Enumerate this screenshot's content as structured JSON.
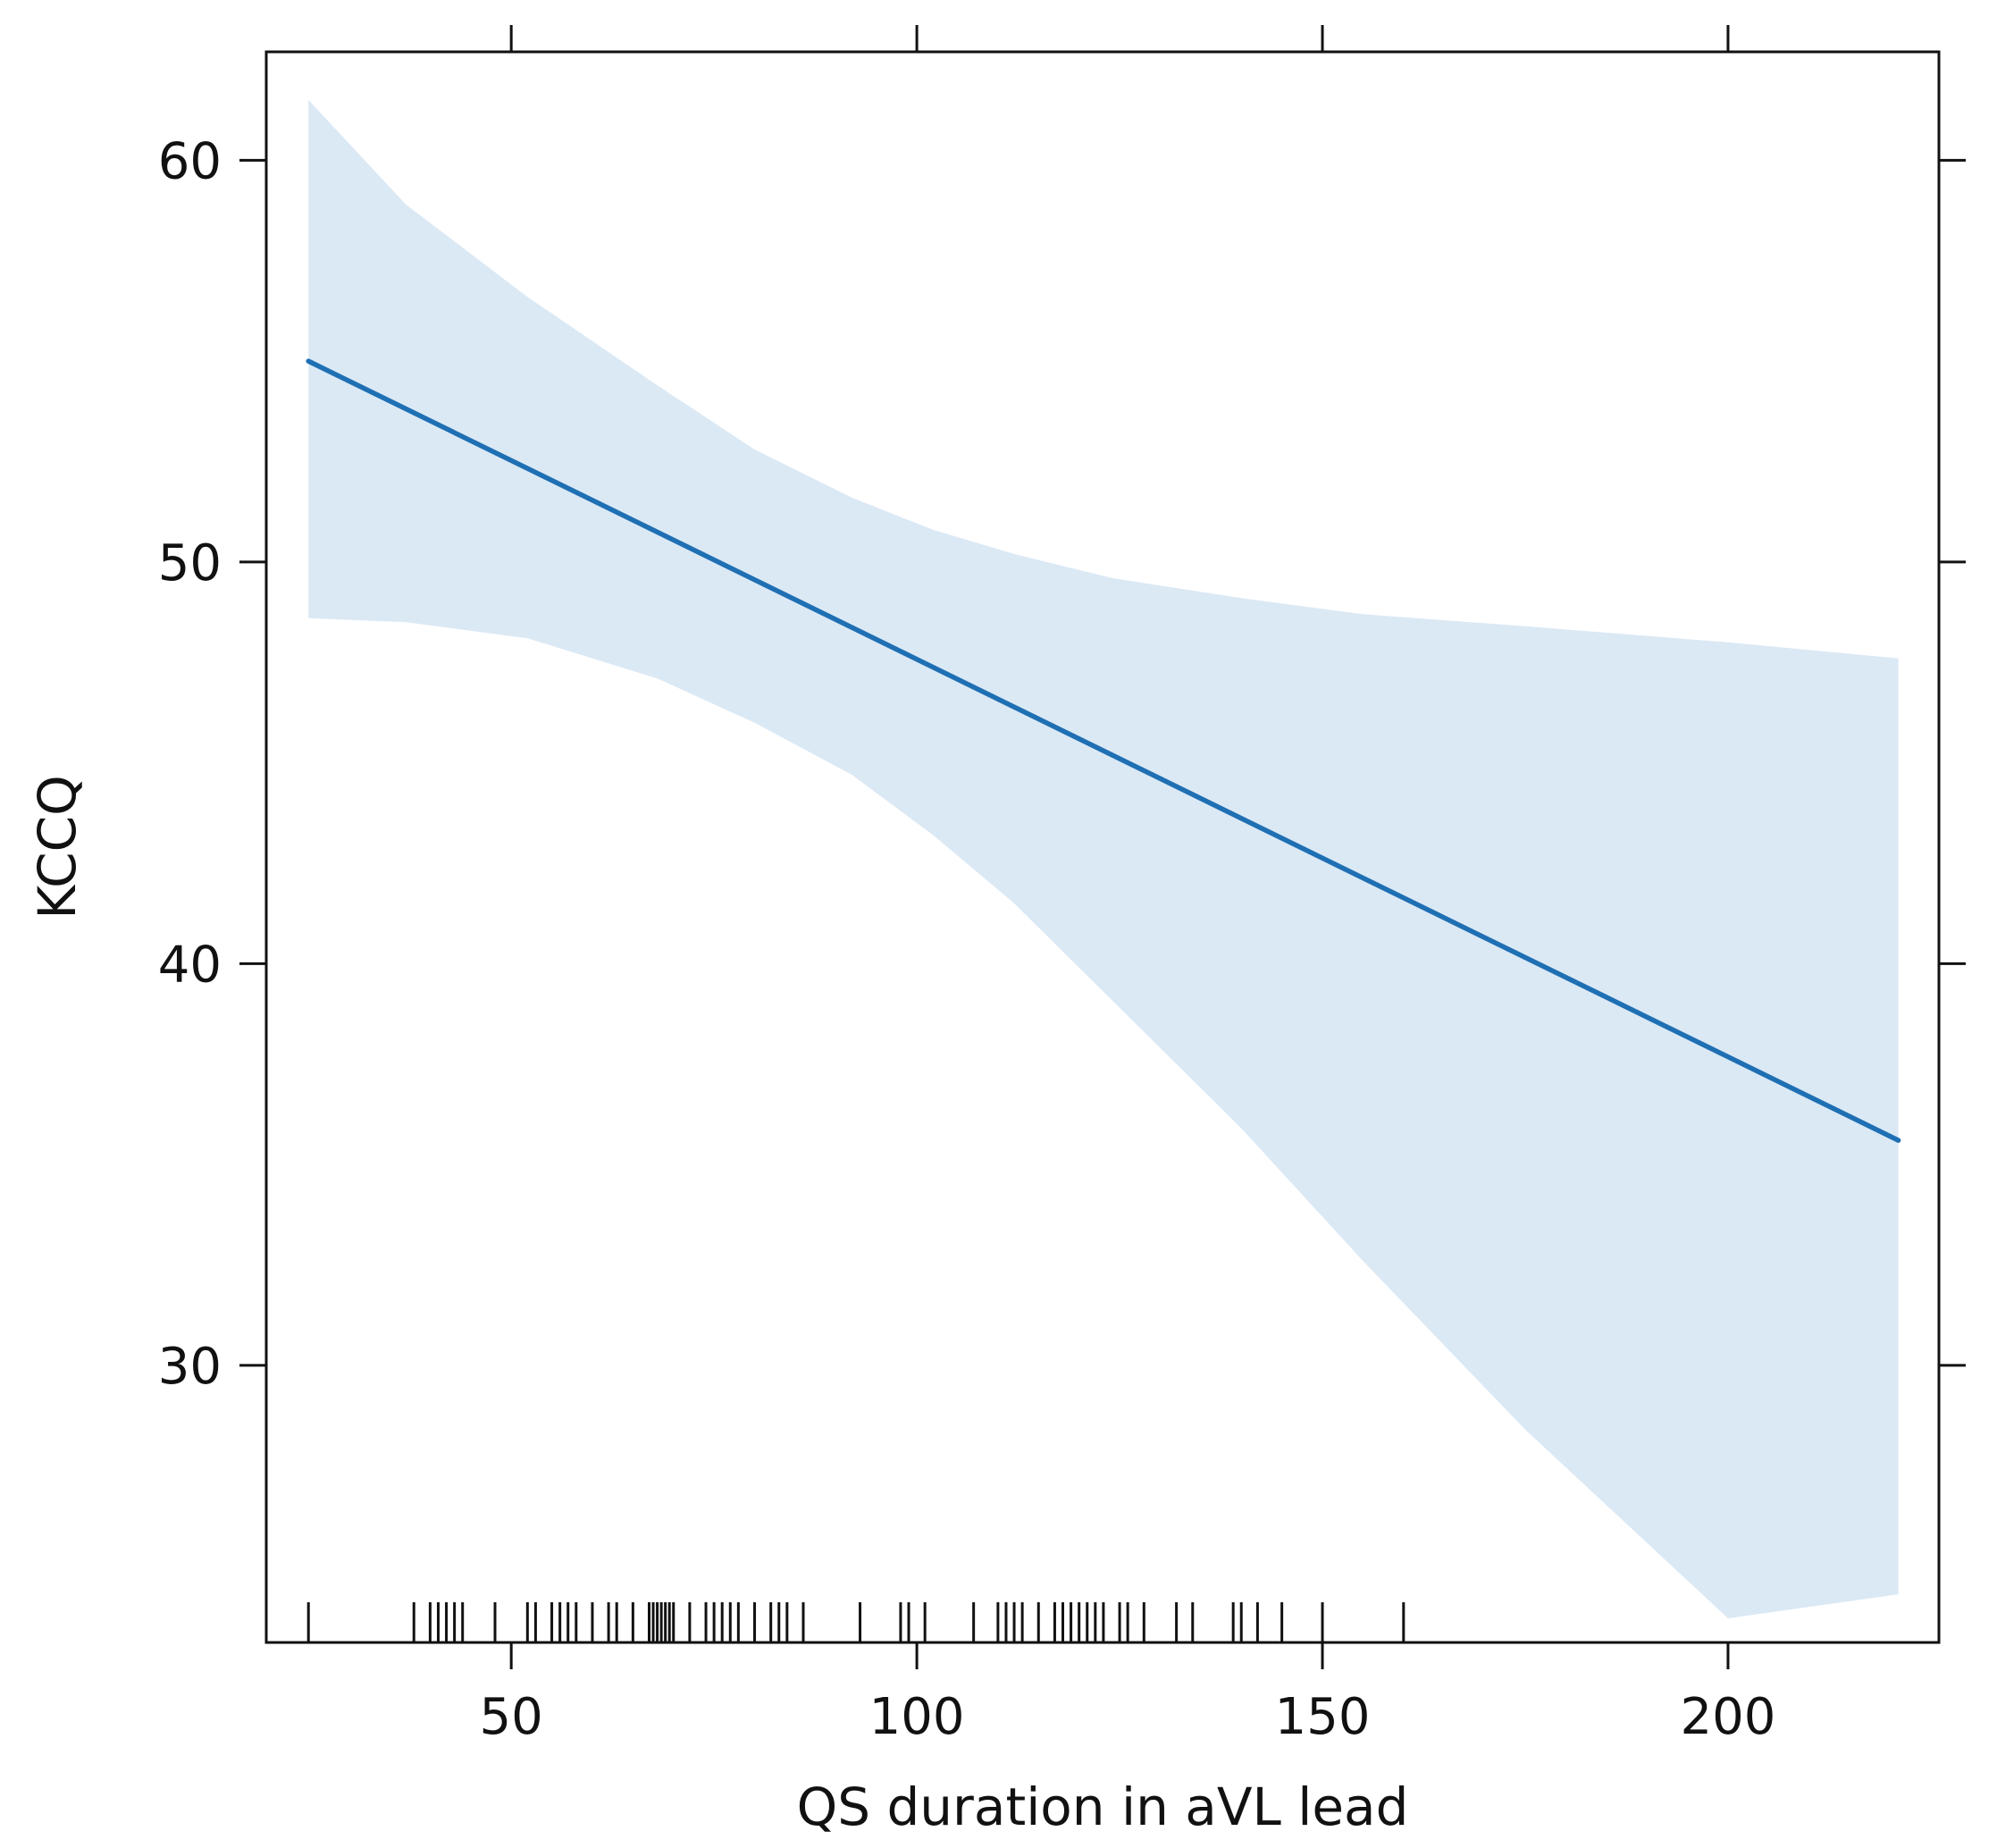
{
  "chart_data": {
    "type": "line",
    "xlabel": "QS duration in aVL lead",
    "ylabel": "KCCQ",
    "xlim": [
      19.8,
      226
    ],
    "ylim": [
      23.1,
      62.7
    ],
    "x_ticks": [
      50,
      100,
      150,
      200
    ],
    "y_ticks": [
      30,
      40,
      50,
      60
    ],
    "x_tick_labels": [
      "50",
      "100",
      "150",
      "200"
    ],
    "y_tick_labels": [
      "30",
      "40",
      "50",
      "60"
    ],
    "grid": false,
    "legend": "none",
    "series": [
      {
        "x": [
          25,
          221
        ],
        "y": [
          55.0,
          35.6
        ],
        "color": "#1f6fb3"
      }
    ],
    "confidence_band": {
      "color": "#dbe9f5",
      "x": [
        25,
        37,
        52,
        68,
        80,
        92,
        102,
        112,
        124,
        140,
        155,
        175,
        200,
        221
      ],
      "upper": [
        61.5,
        58.9,
        56.6,
        54.4,
        52.8,
        51.6,
        50.8,
        50.2,
        49.6,
        49.1,
        48.7,
        48.4,
        48.0,
        47.6
      ],
      "lower": [
        48.6,
        48.5,
        48.1,
        47.1,
        46.0,
        44.7,
        43.2,
        41.5,
        39.1,
        35.9,
        32.6,
        28.4,
        23.7,
        24.3
      ]
    },
    "rug": [
      25,
      38,
      40,
      41,
      42,
      43,
      44,
      48,
      52,
      53,
      55,
      56,
      57,
      58,
      60,
      62,
      63,
      65,
      67,
      67.5,
      68,
      68.5,
      69,
      69.5,
      70,
      72,
      74,
      75,
      76,
      77,
      78,
      80,
      82,
      83,
      84,
      86,
      93,
      98,
      99,
      101,
      107,
      110,
      111,
      112,
      113,
      115,
      117,
      118,
      119,
      120,
      121,
      122,
      123,
      125,
      126,
      128,
      132,
      134,
      139,
      140,
      142,
      145,
      150,
      160
    ]
  }
}
